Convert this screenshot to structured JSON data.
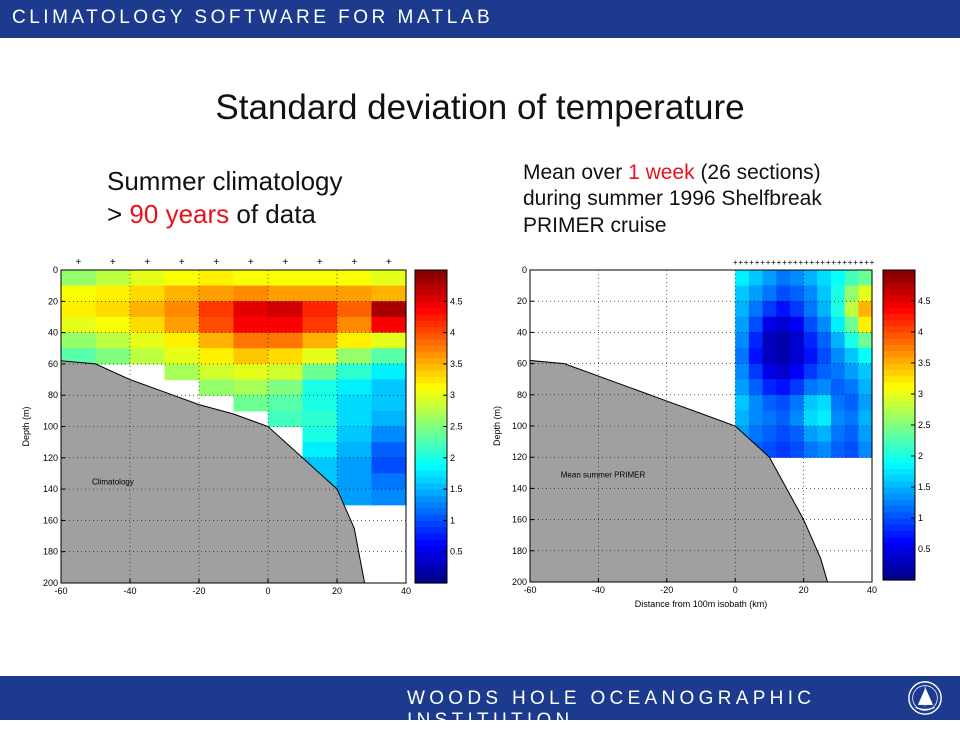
{
  "header": {
    "text": "CLIMATOLOGY SOFTWARE FOR MATLAB"
  },
  "footer": {
    "text": "WOODS HOLE OCEANOGRAPHIC INSTITUTION"
  },
  "slide": {
    "title": "Standard deviation of temperature"
  },
  "left_caption": {
    "line1": "Summer climatology",
    "line2_pre": "> ",
    "line2_red": "90 years",
    "line2_post": " of data"
  },
  "right_caption": {
    "line1_pre": "Mean over ",
    "line1_red": "1 week",
    "line1_post": " (26 sections)",
    "line2": "during summer 1996 Shelfbreak",
    "line3": "PRIMER cruise"
  },
  "colors": {
    "brand_bar": "#1c3b8e",
    "highlight": "#e8121b",
    "topography": "#a0a0a0"
  },
  "chart_data": [
    {
      "type": "heatmap",
      "annotation": "Climatology",
      "xlabel": "",
      "ylabel": "Depth (m)",
      "xlim": [
        -60,
        40
      ],
      "ylim": [
        200,
        0
      ],
      "xticks": [
        "-60",
        "-40",
        "-20",
        "0",
        "20",
        "40"
      ],
      "yticks": [
        "0",
        "20",
        "40",
        "60",
        "80",
        "100",
        "120",
        "140",
        "160",
        "180",
        "200"
      ],
      "station_marker": "+",
      "station_x": [
        -55,
        -45,
        -35,
        -25,
        -15,
        -5,
        5,
        15,
        25,
        35
      ],
      "bottom_profile": {
        "x": [
          -60,
          -50,
          -40,
          -30,
          -20,
          -10,
          0,
          10,
          20,
          25,
          28
        ],
        "depth": [
          58,
          60,
          70,
          78,
          86,
          92,
          100,
          120,
          140,
          165,
          200
        ]
      },
      "colorbar": {
        "min": 0,
        "max": 5,
        "ticks": [
          "0.5",
          "1",
          "1.5",
          "2",
          "2.5",
          "3",
          "3.5",
          "4",
          "4.5"
        ]
      },
      "x": [
        -55,
        -45,
        -35,
        -25,
        -15,
        -5,
        5,
        15,
        25,
        35
      ],
      "y": [
        5,
        15,
        25,
        35,
        45,
        55,
        65,
        75,
        85,
        95,
        105,
        115,
        125,
        135,
        145
      ],
      "z": [
        [
          2.6,
          2.8,
          3.0,
          3.1,
          3.2,
          3.1,
          3.1,
          3.1,
          3.1,
          3.0
        ],
        [
          3.1,
          3.2,
          3.3,
          3.5,
          3.6,
          3.7,
          3.6,
          3.6,
          3.6,
          3.5
        ],
        [
          3.2,
          3.3,
          3.5,
          3.7,
          4.1,
          4.5,
          4.6,
          4.2,
          3.9,
          4.8
        ],
        [
          3.0,
          3.1,
          3.3,
          3.6,
          4.0,
          4.4,
          4.4,
          4.1,
          3.7,
          4.4
        ],
        [
          2.6,
          2.8,
          3.0,
          3.2,
          3.5,
          3.8,
          3.8,
          3.5,
          3.2,
          3.0
        ],
        [
          2.3,
          2.5,
          2.8,
          3.0,
          3.2,
          3.4,
          3.3,
          3.0,
          2.6,
          2.3
        ],
        [
          null,
          null,
          null,
          2.7,
          2.9,
          3.0,
          2.9,
          2.4,
          2.1,
          1.8
        ],
        [
          null,
          null,
          null,
          null,
          2.6,
          2.7,
          2.5,
          2.0,
          1.8,
          1.6
        ],
        [
          null,
          null,
          null,
          null,
          null,
          2.4,
          2.3,
          2.0,
          1.7,
          1.6
        ],
        [
          null,
          null,
          null,
          null,
          null,
          null,
          2.2,
          2.1,
          1.7,
          1.5
        ],
        [
          null,
          null,
          null,
          null,
          null,
          null,
          null,
          2.0,
          1.6,
          1.3
        ],
        [
          null,
          null,
          null,
          null,
          null,
          null,
          null,
          1.8,
          1.5,
          1.1
        ],
        [
          null,
          null,
          null,
          null,
          null,
          null,
          null,
          1.6,
          1.4,
          1.0
        ],
        [
          null,
          null,
          null,
          null,
          null,
          null,
          null,
          1.6,
          1.4,
          1.2
        ],
        [
          null,
          null,
          null,
          null,
          null,
          null,
          null,
          1.5,
          1.4,
          1.3
        ]
      ]
    },
    {
      "type": "heatmap",
      "annotation": "Mean summer PRIMER",
      "xlabel": "Distance from 100m isobath (km)",
      "ylabel": "Depth (m)",
      "xlim": [
        -60,
        40
      ],
      "ylim": [
        200,
        0
      ],
      "xticks": [
        "-60",
        "-40",
        "-20",
        "0",
        "20",
        "40"
      ],
      "yticks": [
        "0",
        "20",
        "40",
        "60",
        "80",
        "100",
        "120",
        "140",
        "160",
        "180",
        "200"
      ],
      "station_marker": "+",
      "station_x": [
        0,
        1.6,
        3.2,
        4.8,
        6.4,
        8,
        9.6,
        11.2,
        12.8,
        14.4,
        16,
        17.6,
        19.2,
        20.8,
        22.4,
        24,
        25.6,
        27.2,
        28.8,
        30.4,
        32,
        33.6,
        35.2,
        36.8,
        38.4,
        40
      ],
      "bottom_profile": {
        "x": [
          -60,
          -50,
          -40,
          -30,
          -20,
          -10,
          0,
          5,
          10,
          15,
          20,
          25,
          27
        ],
        "depth": [
          58,
          60,
          68,
          76,
          84,
          92,
          100,
          110,
          120,
          140,
          160,
          185,
          200
        ]
      },
      "colorbar": {
        "min": 0,
        "max": 5,
        "ticks": [
          "0.5",
          "1",
          "1.5",
          "2",
          "2.5",
          "3",
          "3.5",
          "4",
          "4.5"
        ]
      },
      "x": [
        2,
        6,
        10,
        14,
        18,
        22,
        26,
        30,
        34,
        38
      ],
      "y": [
        5,
        15,
        25,
        35,
        45,
        55,
        65,
        75,
        85,
        95,
        105,
        115
      ],
      "z": [
        [
          1.8,
          1.6,
          1.4,
          1.2,
          1.3,
          1.5,
          1.7,
          1.9,
          2.2,
          2.4
        ],
        [
          1.6,
          1.4,
          1.2,
          1.0,
          1.1,
          1.3,
          1.6,
          2.0,
          2.6,
          3.0
        ],
        [
          1.5,
          1.2,
          0.9,
          0.7,
          0.9,
          1.2,
          1.5,
          2.0,
          2.8,
          3.5
        ],
        [
          1.4,
          1.0,
          0.5,
          0.4,
          0.6,
          1.0,
          1.3,
          1.8,
          2.4,
          3.2
        ],
        [
          1.3,
          0.8,
          0.3,
          0.2,
          0.4,
          0.8,
          1.1,
          1.5,
          2.0,
          2.4
        ],
        [
          1.2,
          0.7,
          0.3,
          0.2,
          0.4,
          0.7,
          1.0,
          1.3,
          1.6,
          1.9
        ],
        [
          1.3,
          0.9,
          0.5,
          0.4,
          0.6,
          0.9,
          1.1,
          1.2,
          1.4,
          1.6
        ],
        [
          1.4,
          1.1,
          0.8,
          0.7,
          0.9,
          1.2,
          1.3,
          1.1,
          1.2,
          1.5
        ],
        [
          1.6,
          1.3,
          1.1,
          1.0,
          1.2,
          1.6,
          1.7,
          1.2,
          1.1,
          1.4
        ],
        [
          1.5,
          1.3,
          1.2,
          1.1,
          1.3,
          1.7,
          1.8,
          1.3,
          1.2,
          1.5
        ],
        [
          1.4,
          1.2,
          1.1,
          1.0,
          1.1,
          1.4,
          1.5,
          1.2,
          1.1,
          1.4
        ],
        [
          1.2,
          1.1,
          1.0,
          0.9,
          1.0,
          1.2,
          1.3,
          1.1,
          1.0,
          1.3
        ]
      ]
    }
  ]
}
